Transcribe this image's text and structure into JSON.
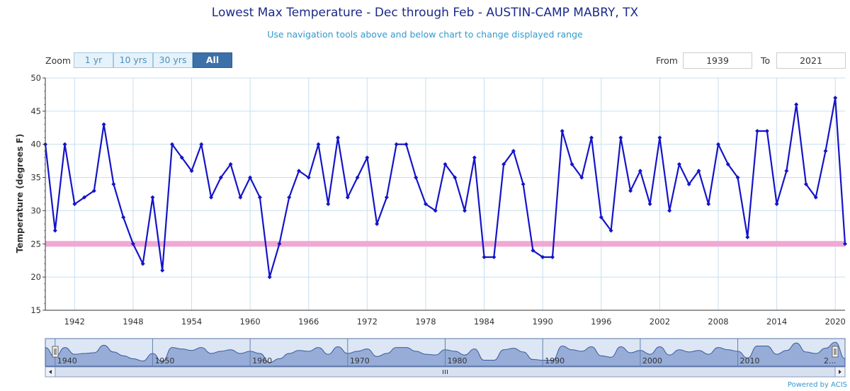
{
  "header": {
    "title": "Lowest Max Temperature - Dec through Feb - AUSTIN-CAMP MABRY, TX",
    "subtitle": "Use navigation tools above and below chart to change displayed range"
  },
  "zoom": {
    "label": "Zoom",
    "buttons": [
      "1 yr",
      "10 yrs",
      "30 yrs",
      "All"
    ],
    "active": "All"
  },
  "range": {
    "from_label": "From",
    "from_value": "1939",
    "to_label": "To",
    "to_value": "2021"
  },
  "credit": "Powered by ACIS",
  "colors": {
    "series": "#1414c8",
    "threshold": "#f0a8d4",
    "grid": "#c5dff0",
    "navigator_fill": "#8fa6d4"
  },
  "chart_data": {
    "type": "line",
    "title": "Lowest Max Temperature - Dec through Feb - AUSTIN-CAMP MABRY, TX",
    "subtitle": "Use navigation tools above and below chart to change displayed range",
    "xlabel": "",
    "ylabel": "Temperature (degrees F)",
    "xlim": [
      1939,
      2021
    ],
    "ylim": [
      15,
      50
    ],
    "y_ticks": [
      15,
      20,
      25,
      30,
      35,
      40,
      45,
      50
    ],
    "x_ticks": [
      1942,
      1948,
      1954,
      1960,
      1966,
      1972,
      1978,
      1984,
      1990,
      1996,
      2002,
      2008,
      2014,
      2020
    ],
    "navigator_ticks": [
      1940,
      1950,
      1960,
      1970,
      1980,
      1990,
      2000,
      2010
    ],
    "navigator_end_label": "2...",
    "grid": true,
    "threshold": 25,
    "series": [
      {
        "x": [
          1939,
          1940,
          1941,
          1942,
          1943,
          1944,
          1945,
          1946,
          1947,
          1948,
          1949,
          1950,
          1951,
          1952,
          1953,
          1954,
          1955,
          1956,
          1957,
          1958,
          1959,
          1960,
          1961,
          1962,
          1963,
          1964,
          1965,
          1966,
          1967,
          1968,
          1969,
          1970,
          1971,
          1972,
          1973,
          1974,
          1975,
          1976,
          1977,
          1978,
          1979,
          1980,
          1981,
          1982,
          1983,
          1984,
          1985,
          1986,
          1987,
          1988,
          1989,
          1990,
          1991,
          1992,
          1993,
          1994,
          1995,
          1996,
          1997,
          1998,
          1999,
          2000,
          2001,
          2002,
          2003,
          2004,
          2005,
          2006,
          2007,
          2008,
          2009,
          2010,
          2011,
          2012,
          2013,
          2014,
          2015,
          2016,
          2017,
          2018,
          2019,
          2020,
          2021
        ],
        "values": [
          40,
          27,
          40,
          31,
          32,
          33,
          43,
          34,
          29,
          25,
          22,
          32,
          21,
          40,
          38,
          36,
          40,
          32,
          35,
          37,
          32,
          35,
          32,
          20,
          25,
          32,
          36,
          35,
          40,
          31,
          41,
          32,
          35,
          38,
          28,
          32,
          40,
          40,
          35,
          31,
          30,
          37,
          35,
          30,
          38,
          23,
          23,
          37,
          39,
          34,
          24,
          23,
          23,
          42,
          37,
          35,
          41,
          29,
          27,
          41,
          33,
          36,
          31,
          41,
          30,
          37,
          34,
          36,
          31,
          40,
          37,
          35,
          26,
          42,
          42,
          31,
          36,
          46,
          34,
          32,
          39,
          47,
          25
        ]
      }
    ]
  }
}
